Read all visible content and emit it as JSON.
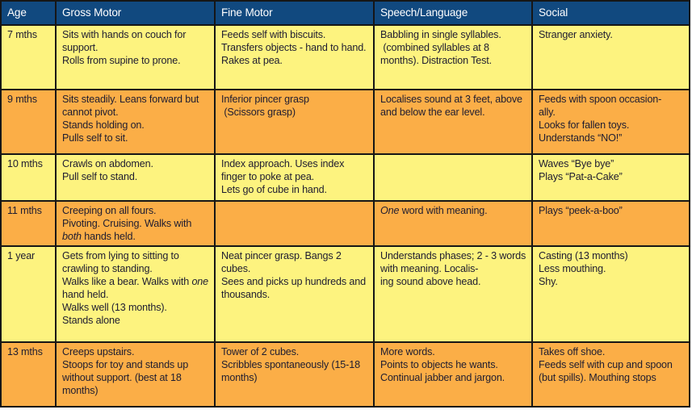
{
  "colors": {
    "header_bg": "#11497F",
    "header_text": "#FFFFFF",
    "row_yellow": "#FDF37F",
    "row_orange": "#FBAE47",
    "border": "#161616",
    "body_text": "#1E1C30"
  },
  "table": {
    "columns": [
      {
        "label": "Age"
      },
      {
        "label": "Gross Motor"
      },
      {
        "label": "Fine Motor"
      },
      {
        "label": "Speech/Language"
      },
      {
        "label": "Social"
      }
    ],
    "rows": [
      {
        "age": "7 mths",
        "gross_motor": "Sits with hands on couch for support.\nRolls from supine to prone.",
        "fine_motor": "Feeds self with biscuits.\nTransfers objects - hand to hand.\nRakes at pea.",
        "speech_language": "Babbling in single syllables.\n (combined syllables at 8 months). Distraction Test.",
        "social": "Stranger anxiety."
      },
      {
        "age": "9 mths",
        "gross_motor": "Sits steadily. Leans forward but cannot pivot.\nStands holding on.\nPulls self to sit.",
        "fine_motor": "Inferior pincer grasp\n (Scissors grasp)",
        "speech_language": "Localises sound at 3 feet, above and below the ear level.",
        "social": "Feeds with spoon occasion-\nally.\nLooks for fallen toys.\nUnderstands “NO!”"
      },
      {
        "age": "10 mths",
        "gross_motor": "Crawls on abdomen.\nPull self to stand.",
        "fine_motor": "Index approach. Uses index finger to poke at pea.\nLets go of cube in hand.",
        "speech_language": "",
        "social": "Waves “Bye bye”\nPlays “Pat-a-Cake”"
      },
      {
        "age": "11 mths",
        "gross_motor": "Creeping on all fours.\nPivoting. Cruising. Walks with *both* hands held.",
        "fine_motor": "",
        "speech_language": "*One* word with meaning.",
        "social": "Plays “peek-a-boo”"
      },
      {
        "age": "1 year",
        "gross_motor": "Gets from lying to sitting to crawling to standing.\nWalks like a bear. Walks with *one* hand held.\nWalks well (13 months).\nStands alone",
        "fine_motor": "Neat pincer grasp. Bangs 2 cubes.\nSees and picks up hundreds and thousands.",
        "speech_language": "Understands phases; 2 - 3 words with meaning. Localis-\ning sound above head.",
        "social": "Casting (13 months)\nLess mouthing.\nShy."
      },
      {
        "age": "13 mths",
        "gross_motor": "Creeps upstairs.\nStoops for toy and stands up without support. (best at 18 months)",
        "fine_motor": "Tower of 2 cubes.\nScribbles spontaneously (15-18 months)",
        "speech_language": "More words.\nPoints to objects he wants.\nContinual jabber and jargon.",
        "social": "Takes off shoe.\nFeeds self with cup and spoon (but spills). Mouthing stops"
      }
    ]
  }
}
